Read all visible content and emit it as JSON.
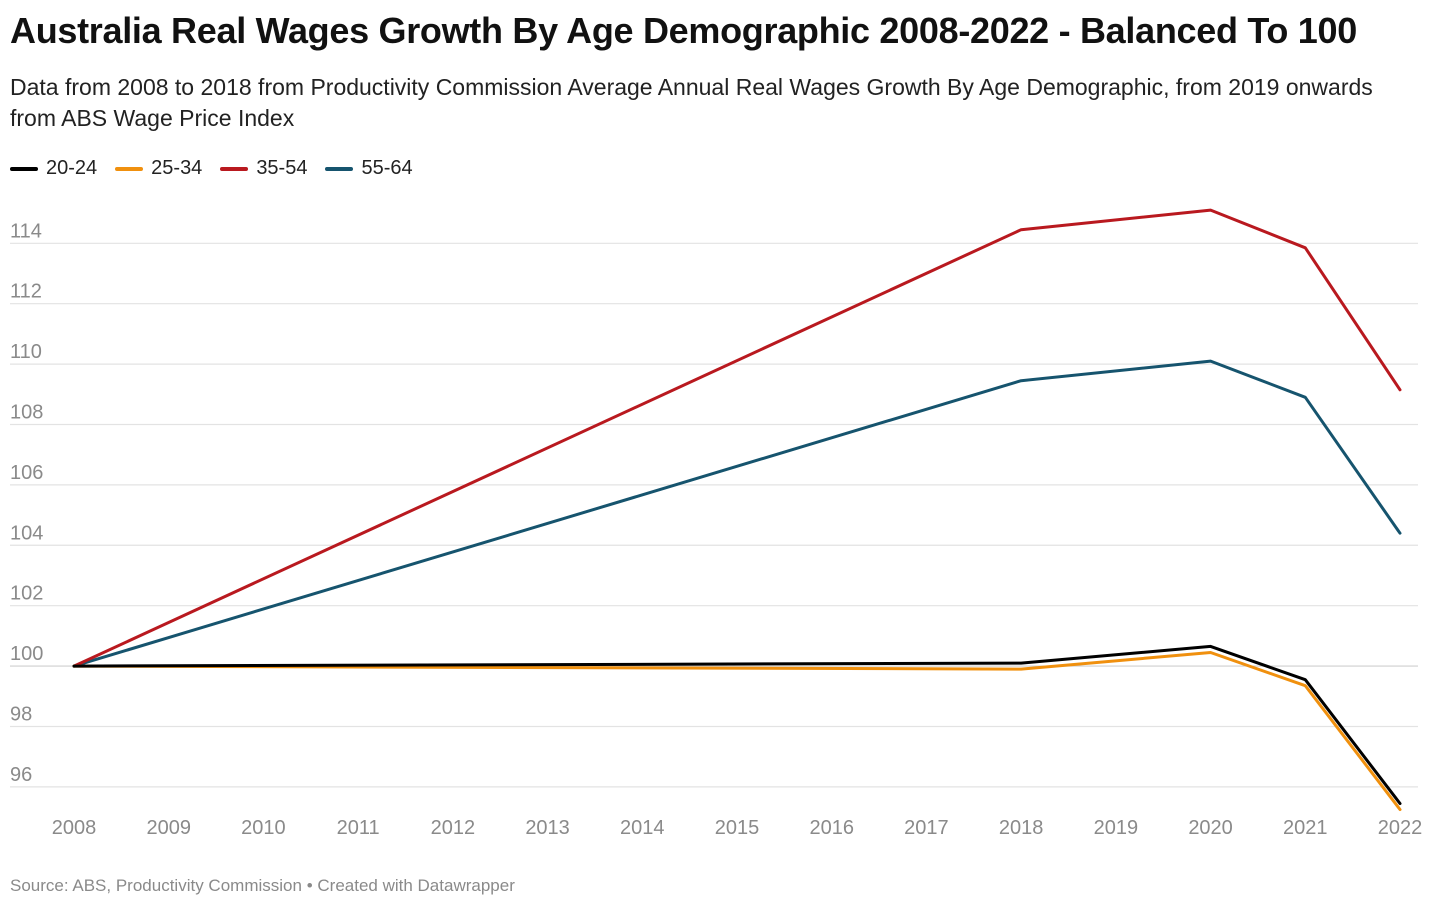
{
  "header": {
    "title": "Australia Real Wages Growth By Age Demographic 2008-2022 - Balanced To 100",
    "subtitle": "Data from 2008 to 2018 from Productivity Commission Average Annual Real Wages Growth By Age Demographic, from 2019 onwards from ABS Wage Price Index"
  },
  "footer": {
    "source": "Source: ABS, Productivity Commission",
    "separator": "•",
    "credit": "Created with Datawrapper"
  },
  "chart_data": {
    "type": "line",
    "title": "Australia Real Wages Growth By Age Demographic 2008-2022 - Balanced To 100",
    "xlabel": "",
    "ylabel": "",
    "x": [
      2008,
      2018,
      2020,
      2021,
      2022
    ],
    "xticks": [
      "2008",
      "2009",
      "2010",
      "2011",
      "2012",
      "2013",
      "2014",
      "2015",
      "2016",
      "2017",
      "2018",
      "2019",
      "2020",
      "2021",
      "2022"
    ],
    "yticks": [
      96,
      98,
      100,
      102,
      104,
      106,
      108,
      110,
      112,
      114
    ],
    "xlim": [
      2008,
      2022
    ],
    "ylim": [
      95.3,
      115.6
    ],
    "grid": true,
    "legend_position": "top-left",
    "series": [
      {
        "name": "20-24",
        "color": "#000000",
        "values": [
          100,
          100.1,
          100.65,
          99.55,
          95.45
        ]
      },
      {
        "name": "25-34",
        "color": "#f0900e",
        "values": [
          100,
          99.9,
          100.45,
          99.35,
          95.25
        ]
      },
      {
        "name": "35-54",
        "color": "#b9191f",
        "values": [
          100,
          114.45,
          115.1,
          113.85,
          109.15
        ]
      },
      {
        "name": "55-64",
        "color": "#16546e",
        "values": [
          100,
          109.45,
          110.1,
          108.9,
          104.4
        ]
      }
    ]
  }
}
